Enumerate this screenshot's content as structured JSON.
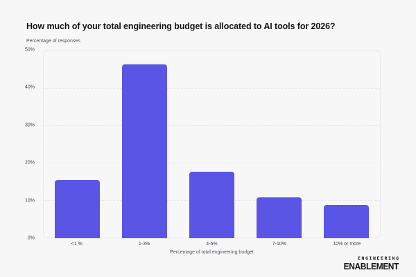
{
  "chart_data": {
    "type": "bar",
    "title": "How much of your total engineering budget is allocated to AI tools for 2026?",
    "ylabel": "Percentage of responses",
    "xlabel": "Percentage of total engineering budget",
    "categories": [
      "<1 %",
      "1-3%",
      "4-6%",
      "7-10%",
      "10% or more"
    ],
    "values": [
      15.5,
      46.5,
      17.7,
      11,
      8.8
    ],
    "ylim": [
      0,
      50
    ],
    "ytick_labels": [
      "50%",
      "40%",
      "30%",
      "20%",
      "10%",
      "0%"
    ],
    "grid": "horizontal-dotted",
    "legend_position": "none",
    "bar_color": "#5a55e5"
  },
  "colors": {
    "background": "#f7f7f8",
    "bar": "#5a55e5",
    "gridline": "#e4e4e8",
    "plot_border": "#e0e0e5",
    "title_text": "#141417",
    "axis_text": "#3f3f46"
  },
  "logo": {
    "line1": "ENGINEERING",
    "line2": "ENABLEMENT"
  }
}
